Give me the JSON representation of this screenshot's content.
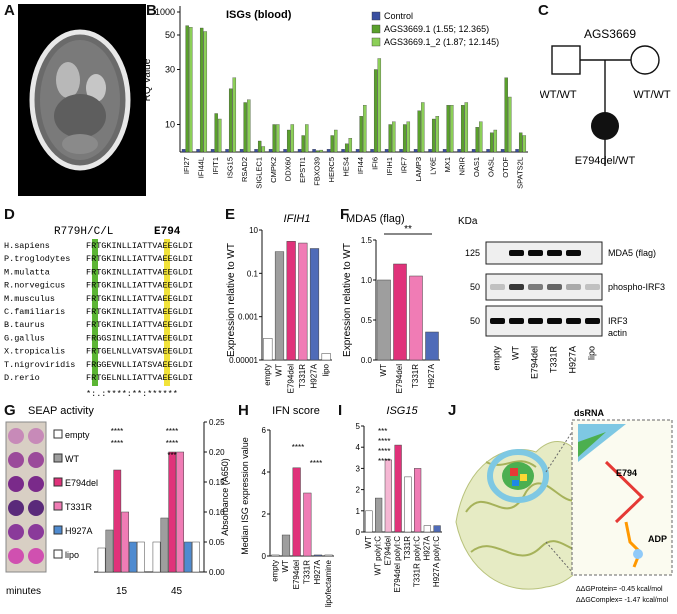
{
  "panel_labels": {
    "a": "A",
    "b": "B",
    "c": "C",
    "d": "D",
    "e": "E",
    "f": "F",
    "g": "G",
    "h": "H",
    "i": "I",
    "j": "J"
  },
  "panel_b": {
    "title": "ISGs (blood)",
    "ylabel": "RQ Value",
    "legend": [
      "Control",
      "AGS3669.1 (1.55; 12.365)",
      "AGS3669.1_2 (1.87; 12.145)"
    ],
    "colors": {
      "control": "#3a4fa0",
      "s1": "#5aa02c",
      "s2": "#8ccf58"
    }
  },
  "panel_c": {
    "family": "AGS3669",
    "father": "WT/WT",
    "mother": "WT/WT",
    "child": "E794del/WT"
  },
  "panel_d": {
    "header_left": "R779H/C/L",
    "header_right": "E794",
    "species": [
      "H.sapiens",
      "P.troglodytes",
      "M.mulatta",
      "R.norvegicus",
      "M.musculus",
      "C.familiaris",
      "B.taurus",
      "G.gallus",
      "X.tropicalis",
      "T.nigroviridis",
      "D.rerio"
    ],
    "seqs": [
      "FRTGKINLLIATTVAEEGLDI",
      "FRTGKINLLIATTVAEEGLDI",
      "FRTGKINLLIATTVAEEGLDI",
      "FRTGKINLLIATTVAEEGLDI",
      "FRTGKINLLIATTVAEEGLDI",
      "FRTGKINLLIATTVAEEGLDI",
      "FRTGKINLLIATTVAEEGLDI",
      "FRGGSINLLIATTVAEEGLDI",
      "FRTGELNLLVATSVAEEGLDI",
      "FRGGEVNLLIATSVAEEGLDI",
      "FRTGELNLLIATTVAEEGLDI"
    ],
    "conservation": "*:.:****:**:******"
  },
  "panel_e": {
    "title": "IFIH1",
    "ylabel": "Expression relative to WT",
    "yticks": [
      "10",
      "0.1",
      "0.001",
      "0.00001"
    ]
  },
  "panel_f": {
    "title": "MDA5 (flag)",
    "ylabel": "Expression relative to WT",
    "sig": "**",
    "yticks": [
      "1.5",
      "1.0",
      "0.5",
      "0.0"
    ],
    "blot_kda_label": "KDa",
    "blot_markers": [
      "125",
      "50",
      "50"
    ],
    "blot_bands": [
      "MDA5 (flag)",
      "phospho-IRF3",
      "IRF3",
      "actin"
    ],
    "lanes": [
      "empty",
      "WT",
      "E794del",
      "T331R",
      "H927A",
      "lipo"
    ]
  },
  "panel_g": {
    "title": "SEAP activity",
    "ylabel": "Absorbance (A650)",
    "xlabel": "minutes",
    "time_points": [
      "15",
      "45"
    ],
    "legend": [
      "empty",
      "WT",
      "E794del",
      "T331R",
      "H927A",
      "lipo"
    ],
    "yticks": [
      "0.25",
      "0.20",
      "0.15",
      "0.10",
      "0.05",
      "0.00"
    ],
    "sig": "****",
    "sig3": "***"
  },
  "panel_h": {
    "title": "IFN score",
    "ylabel": "Median ISG expression value",
    "yticks": [
      "6",
      "4",
      "2",
      "0"
    ],
    "categories": [
      "empty",
      "WT",
      "E794del",
      "T331R",
      "H927A",
      "lipofectamine"
    ],
    "sig": "****"
  },
  "panel_i": {
    "title": "ISG15",
    "yticks": [
      "5",
      "4",
      "3",
      "2",
      "1",
      "0"
    ],
    "categories": [
      "WT",
      "WT polyI:C",
      "E794del",
      "E794del polyI:C",
      "T331R",
      "T331R polyI:C",
      "H927A",
      "H927A polyI:C"
    ],
    "sig3": "***",
    "sig4": "****"
  },
  "panel_j": {
    "dsrna_label": "dsRNA",
    "e794_label": "E794",
    "adp_label": "ADP",
    "ddg_protein": "ΔΔGProtein= -0.45 kcal/mol",
    "ddg_complex": "ΔΔGComplex= -1.47 kcal/mol"
  },
  "chart_data": [
    {
      "type": "bar",
      "title": "ISGs (blood)",
      "ylabel": "RQ Value",
      "categories": [
        "IFI27",
        "IFI44L",
        "IFIT1",
        "ISG15",
        "RSAD2",
        "SIGLEC1",
        "CMPK2",
        "DDX60",
        "EPSTI1",
        "FBXO39",
        "HERC5",
        "HES4",
        "IFI44",
        "IFI6",
        "IFIH1",
        "IRF7",
        "LAMP3",
        "LY6E",
        "MX1",
        "NRIR",
        "OAS1",
        "OASL",
        "OTOF",
        "SPATS2L"
      ],
      "series": [
        {
          "name": "Control",
          "values": [
            1,
            1,
            1,
            1,
            1,
            1,
            1,
            1,
            1,
            1,
            1,
            1,
            1,
            1,
            1,
            1,
            1,
            1,
            1,
            1,
            1,
            1,
            1,
            1
          ]
        },
        {
          "name": "AGS3669.1 (1.55; 12.365)",
          "values": [
            200,
            60,
            14,
            23,
            18,
            4,
            10,
            8,
            6,
            0.5,
            6,
            3,
            13,
            30,
            10,
            10,
            15,
            12,
            17,
            17,
            9,
            7,
            27,
            7
          ]
        },
        {
          "name": "AGS3669.1_2 (1.87; 12.145)",
          "values": [
            100,
            55,
            12,
            27,
            19,
            2,
            10,
            10,
            10,
            0.7,
            8,
            5,
            17,
            34,
            11,
            11,
            18,
            13,
            17,
            18,
            11,
            8,
            20,
            6
          ]
        }
      ]
    },
    {
      "type": "bar",
      "title": "IFIH1",
      "ylabel": "Expression relative to WT",
      "categories": [
        "empty",
        "WT",
        "E794del",
        "T331R",
        "H927A",
        "lipo"
      ],
      "values": [
        0.0001,
        1,
        3,
        2.5,
        1.4,
        2e-05
      ]
    },
    {
      "type": "bar",
      "title": "MDA5 (flag)",
      "ylabel": "Expression relative to WT",
      "categories": [
        "WT",
        "E794del",
        "T331R",
        "H927A"
      ],
      "values": [
        1.0,
        1.2,
        1.05,
        0.35
      ],
      "ylim": [
        0,
        1.5
      ]
    },
    {
      "type": "bar",
      "title": "SEAP activity",
      "xlabel": "minutes",
      "ylabel": "Absorbance (A650)",
      "categories": [
        "15",
        "45"
      ],
      "series": [
        {
          "name": "empty",
          "values": [
            0.04,
            0.05
          ]
        },
        {
          "name": "WT",
          "values": [
            0.07,
            0.09
          ]
        },
        {
          "name": "E794del",
          "values": [
            0.17,
            0.2
          ]
        },
        {
          "name": "T331R",
          "values": [
            0.1,
            0.2
          ]
        },
        {
          "name": "H927A",
          "values": [
            0.05,
            0.05
          ]
        },
        {
          "name": "lipo",
          "values": [
            0.05,
            0.05
          ]
        }
      ],
      "ylim": [
        0,
        0.25
      ]
    },
    {
      "type": "bar",
      "title": "IFN score",
      "ylabel": "Median ISG expression value",
      "categories": [
        "empty",
        "WT",
        "E794del",
        "T331R",
        "H927A",
        "lipofectamine"
      ],
      "values": [
        0.05,
        1.0,
        4.2,
        3.0,
        0.05,
        0.05
      ],
      "ylim": [
        0,
        6
      ]
    },
    {
      "type": "bar",
      "title": "ISG15",
      "categories": [
        "WT",
        "WT polyI:C",
        "E794del",
        "E794del polyI:C",
        "T331R",
        "T331R polyI:C",
        "H927A",
        "H927A polyI:C"
      ],
      "values": [
        1.0,
        1.6,
        3.4,
        4.1,
        2.6,
        3.0,
        0.3,
        0.3
      ],
      "ylim": [
        0,
        5
      ]
    }
  ]
}
